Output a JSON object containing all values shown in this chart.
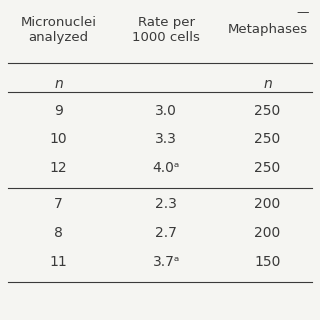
{
  "col_headers": [
    "Micronuclei\nanalyzed",
    "Rate per\n1000 cells",
    "Metaphases"
  ],
  "subheaders": [
    "n",
    "",
    "n"
  ],
  "rows": [
    [
      "9",
      "3.0",
      "250"
    ],
    [
      "10",
      "3.3",
      "250"
    ],
    [
      "12",
      "4.0ᵃ",
      "250"
    ],
    [
      "7",
      "2.3",
      "200"
    ],
    [
      "8",
      "2.7",
      "200"
    ],
    [
      "11",
      "3.7ᵃ",
      "150"
    ]
  ],
  "group_divider_after_row": 2,
  "bg_color": "#f5f5f2",
  "text_color": "#3a3a3a",
  "header_fontsize": 9.5,
  "data_fontsize": 10,
  "subheader_fontsize": 10
}
